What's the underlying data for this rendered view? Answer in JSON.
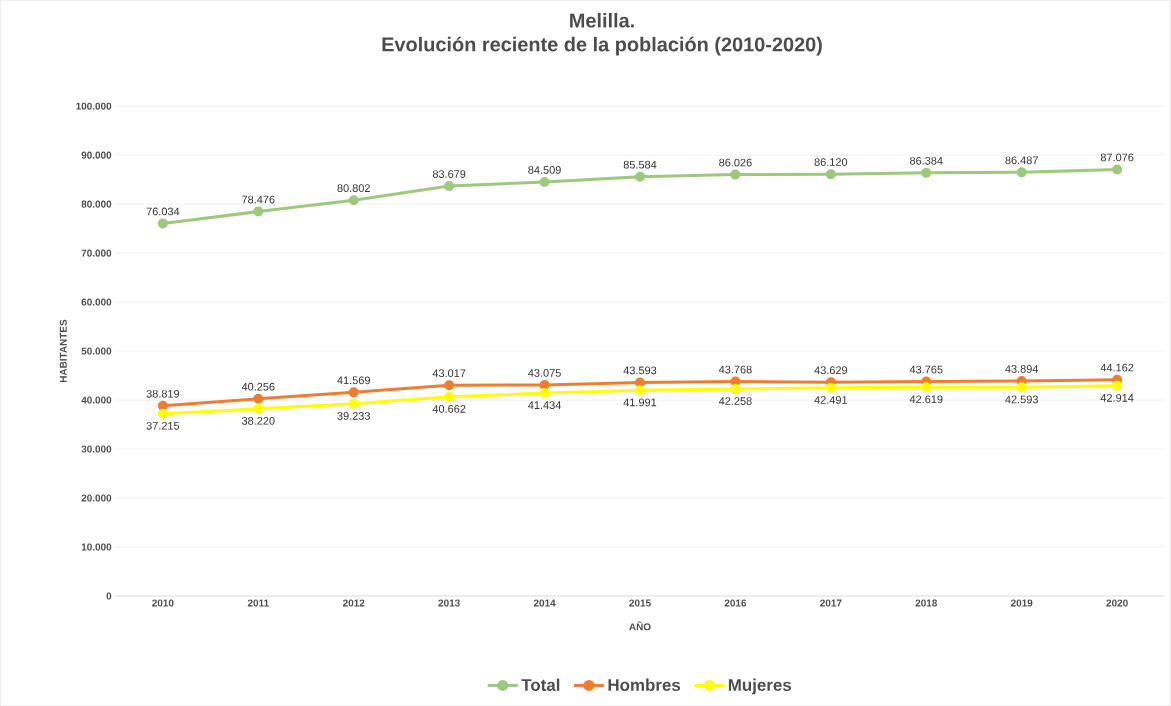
{
  "chart_data": {
    "type": "line",
    "title": "Melilla.",
    "subtitle": "Evolución reciente de la población (2010-2020)",
    "xlabel": "AÑO",
    "ylabel": "HABITANTES",
    "categories": [
      "2010",
      "2011",
      "2012",
      "2013",
      "2014",
      "2015",
      "2016",
      "2017",
      "2018",
      "2019",
      "2020"
    ],
    "series": [
      {
        "name": "Total",
        "color": "#9dc97f",
        "values": [
          76034,
          78476,
          80802,
          83679,
          84509,
          85584,
          86026,
          86120,
          86384,
          86487,
          87076
        ],
        "value_labels": [
          "76.034",
          "78.476",
          "80.802",
          "83.679",
          "84.509",
          "85.584",
          "86.026",
          "86.120",
          "86.384",
          "86.487",
          "87.076"
        ]
      },
      {
        "name": "Hombres",
        "color": "#ed7d31",
        "values": [
          38819,
          40256,
          41569,
          43017,
          43075,
          43593,
          43768,
          43629,
          43765,
          43894,
          44162
        ],
        "value_labels": [
          "38.819",
          "40.256",
          "41.569",
          "43.017",
          "43.075",
          "43.593",
          "43.768",
          "43.629",
          "43.765",
          "43.894",
          "44.162"
        ]
      },
      {
        "name": "Mujeres",
        "color": "#ffff00",
        "values": [
          37215,
          38220,
          39233,
          40662,
          41434,
          41991,
          42258,
          42491,
          42619,
          42593,
          42914
        ],
        "value_labels": [
          "37.215",
          "38.220",
          "39.233",
          "40.662",
          "41.434",
          "41.991",
          "42.258",
          "42.491",
          "42.619",
          "42.593",
          "42.914"
        ]
      }
    ],
    "ylim": [
      0,
      100000
    ],
    "yticks": [
      {
        "value": 0,
        "label": "0"
      },
      {
        "value": 10000,
        "label": "10.000"
      },
      {
        "value": 20000,
        "label": "20.000"
      },
      {
        "value": 30000,
        "label": "30.000"
      },
      {
        "value": 40000,
        "label": "40.000"
      },
      {
        "value": 50000,
        "label": "50.000"
      },
      {
        "value": 60000,
        "label": "60.000"
      },
      {
        "value": 70000,
        "label": "70.000"
      },
      {
        "value": 80000,
        "label": "80.000"
      },
      {
        "value": 90000,
        "label": "90.000"
      },
      {
        "value": 100000,
        "label": "100.000"
      }
    ],
    "grid": "y",
    "legend": "bottom",
    "marker": "circle"
  }
}
